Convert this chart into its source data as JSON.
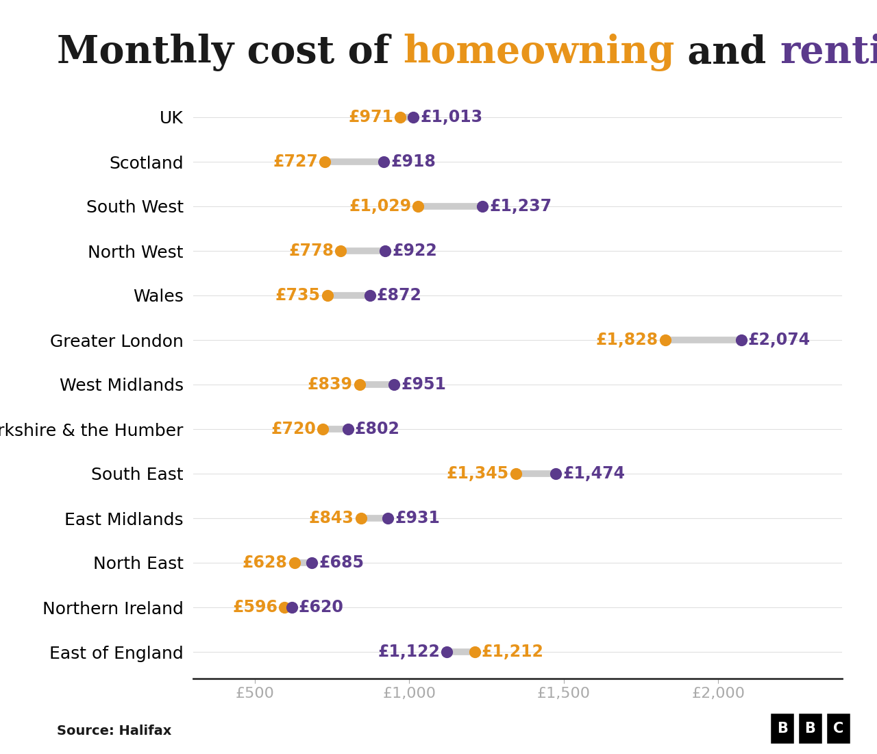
{
  "title_parts": [
    {
      "text": "Monthly cost of ",
      "color": "#1a1a1a"
    },
    {
      "text": "homeowning",
      "color": "#e8941a"
    },
    {
      "text": " and ",
      "color": "#1a1a1a"
    },
    {
      "text": "renting",
      "color": "#5b3a8c"
    }
  ],
  "regions": [
    "UK",
    "Scotland",
    "South West",
    "North West",
    "Wales",
    "Greater London",
    "West Midlands",
    "Yorkshire & the Humber",
    "South East",
    "East Midlands",
    "North East",
    "Northern Ireland",
    "East of England"
  ],
  "mortgage": [
    971,
    727,
    1029,
    778,
    735,
    1828,
    839,
    720,
    1345,
    843,
    628,
    596,
    1212
  ],
  "rent": [
    1013,
    918,
    1237,
    922,
    872,
    2074,
    951,
    802,
    1474,
    931,
    685,
    620,
    1122
  ],
  "mortgage_color": "#e8941a",
  "rent_color": "#5b3a8c",
  "connector_color": "#cccccc",
  "background_color": "#ffffff",
  "axis_label_color": "#aaaaaa",
  "source_text": "Source: Halifax",
  "xlim": [
    300,
    2400
  ],
  "xticks": [
    500,
    1000,
    1500,
    2000
  ],
  "xtick_labels": [
    "£500",
    "£1,000",
    "£1,500",
    "£2,000"
  ],
  "dot_size": 130,
  "connector_lw": 7,
  "title_fontsize": 40,
  "label_fontsize": 18,
  "value_fontsize": 17,
  "axis_tick_fontsize": 16
}
